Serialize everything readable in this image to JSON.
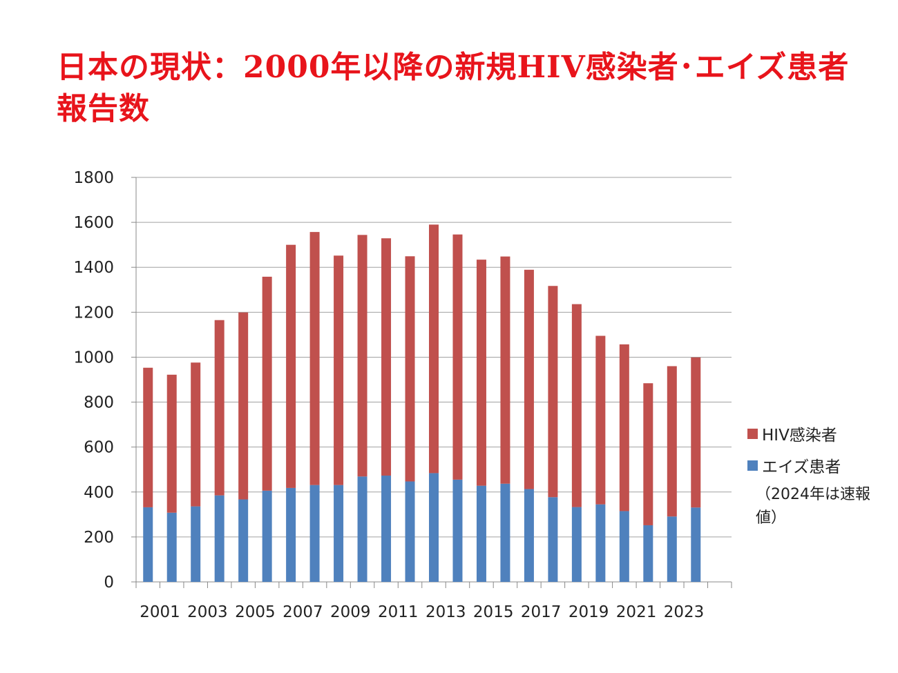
{
  "title": "日本の現状：2000年以降の新規HIV感染者･エイズ患者報告数",
  "note": "（2024年は速報値）",
  "colors": {
    "hiv": "#c0504d",
    "aids": "#4f81bd",
    "title": "#e8141b"
  },
  "chart_data": {
    "type": "bar",
    "stacked": true,
    "title": "日本の現状：2000年以降の新規HIV感染者･エイズ患者報告数",
    "categories": [
      "2001",
      "2002",
      "2003",
      "2004",
      "2005",
      "2006",
      "2007",
      "2008",
      "2009",
      "2010",
      "2011",
      "2012",
      "2013",
      "2014",
      "2015",
      "2016",
      "2017",
      "2018",
      "2019",
      "2020",
      "2021",
      "2022",
      "2023",
      "2024"
    ],
    "x_tick_labels": [
      "2001",
      "2003",
      "2005",
      "2007",
      "2009",
      "2011",
      "2013",
      "2015",
      "2017",
      "2019",
      "2021",
      "2023"
    ],
    "series": [
      {
        "name": "エイズ患者",
        "values": [
          332,
          308,
          336,
          385,
          367,
          406,
          418,
          431,
          431,
          469,
          473,
          447,
          484,
          455,
          428,
          437,
          413,
          377,
          333,
          345,
          315,
          252,
          291,
          331
        ]
      },
      {
        "name": "HIV感染者",
        "values": [
          621,
          614,
          640,
          780,
          832,
          952,
          1082,
          1126,
          1021,
          1075,
          1056,
          1002,
          1106,
          1091,
          1006,
          1011,
          976,
          940,
          903,
          750,
          742,
          632,
          669,
          668
        ]
      }
    ],
    "legend": [
      "HIV感染者",
      "エイズ患者"
    ],
    "legend_position": "right",
    "ylim": [
      0,
      1800
    ],
    "y_ticks": [
      0,
      200,
      400,
      600,
      800,
      1000,
      1200,
      1400,
      1600,
      1800
    ],
    "grid": true,
    "xlabel": "",
    "ylabel": ""
  }
}
